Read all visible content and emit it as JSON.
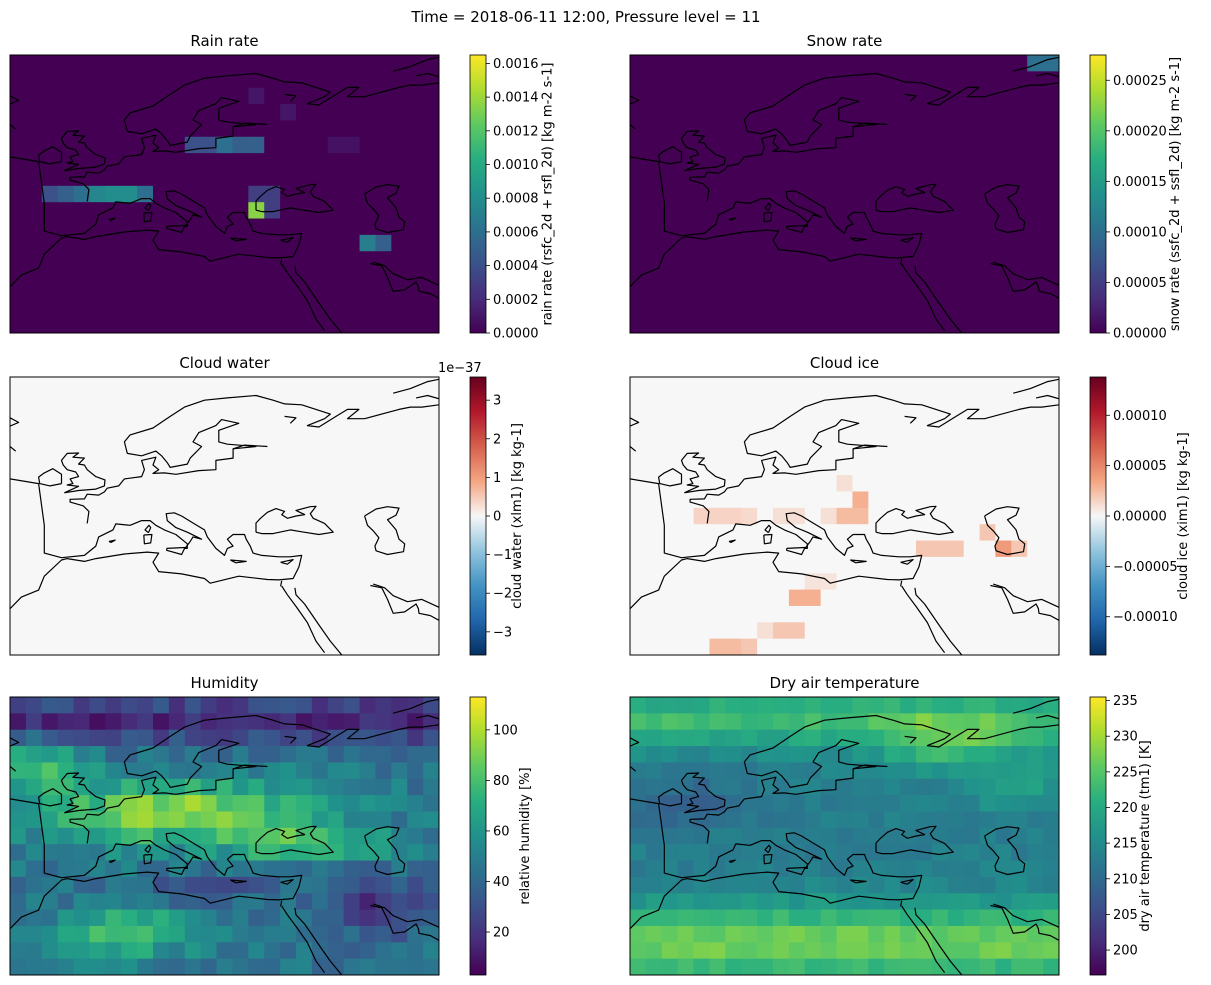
{
  "figure": {
    "suptitle": "Time = 2018-06-11 12:00, Pressure level = 11"
  },
  "panels": [
    {
      "id": "rain",
      "title": "Rain rate",
      "cmap": "viridis",
      "vmin": 0,
      "vmax": 0.00165,
      "ticks": [
        0,
        0.0002,
        0.0004,
        0.0006,
        0.0008,
        0.001,
        0.0012,
        0.0014,
        0.0016
      ],
      "tick_labels": [
        "0.0000",
        "0.0002",
        "0.0004",
        "0.0006",
        "0.0008",
        "0.0010",
        "0.0012",
        "0.0014",
        "0.0016"
      ],
      "colorbar_label": "rain rate (rsfc_2d + rsfl_2d) [kg m-2 s-1]",
      "offset_text": ""
    },
    {
      "id": "snow",
      "title": "Snow rate",
      "cmap": "viridis",
      "vmin": 0,
      "vmax": 0.000275,
      "ticks": [
        0,
        5e-05,
        0.0001,
        0.00015,
        0.0002,
        0.00025
      ],
      "tick_labels": [
        "0.00000",
        "0.00005",
        "0.00010",
        "0.00015",
        "0.00020",
        "0.00025"
      ],
      "colorbar_label": "snow rate (ssfc_2d + ssfl_2d) [kg m-2 s-1]",
      "offset_text": ""
    },
    {
      "id": "cloudwater",
      "title": "Cloud water",
      "cmap": "RdBu_r",
      "vmin": -3.6,
      "vmax": 3.6,
      "ticks": [
        -3,
        -2,
        -1,
        0,
        1,
        2,
        3
      ],
      "tick_labels": [
        "−3",
        "−2",
        "−1",
        "0",
        "1",
        "2",
        "3"
      ],
      "colorbar_label": "cloud water (xlm1) [kg kg-1]",
      "offset_text": "1e−37"
    },
    {
      "id": "cloudice",
      "title": "Cloud ice",
      "cmap": "RdBu_r",
      "vmin": -0.000138,
      "vmax": 0.000138,
      "ticks": [
        -0.0001,
        -5e-05,
        0,
        5e-05,
        0.0001
      ],
      "tick_labels": [
        "−0.00010",
        "−0.00005",
        "0.00000",
        "0.00005",
        "0.00010"
      ],
      "colorbar_label": "cloud ice (xim1) [kg kg-1]",
      "offset_text": ""
    },
    {
      "id": "humidity",
      "title": "Humidity",
      "cmap": "viridis",
      "vmin": 3,
      "vmax": 113,
      "ticks": [
        20,
        40,
        60,
        80,
        100
      ],
      "tick_labels": [
        "20",
        "40",
        "60",
        "80",
        "100"
      ],
      "colorbar_label": "relative humidity [%]",
      "offset_text": ""
    },
    {
      "id": "temperature",
      "title": "Dry air temperature",
      "cmap": "viridis",
      "vmin": 196.5,
      "vmax": 235.5,
      "ticks": [
        200,
        205,
        210,
        215,
        220,
        225,
        230,
        235
      ],
      "tick_labels": [
        "200",
        "205",
        "210",
        "215",
        "220",
        "225",
        "230",
        "235"
      ],
      "colorbar_label": "dry air temperature (tm1) [K]",
      "offset_text": ""
    }
  ],
  "chart_data": {
    "type": "heatmap",
    "grid": {
      "lon_range": [
        -15,
        60
      ],
      "lat_range": [
        15,
        75
      ],
      "shape": "approx. 27 columns x 17 rows per panel"
    },
    "rain_rate_cells": [
      {
        "lon": 28,
        "lat": 41,
        "value": 0.00135
      },
      {
        "lon": 1,
        "lat": 44,
        "value": 0.0009
      },
      {
        "lon": 3,
        "lat": 44,
        "value": 0.0008
      },
      {
        "lon": -5,
        "lat": 46,
        "value": 0.0006
      },
      {
        "lon": 50,
        "lat": 35,
        "value": 0.0007
      },
      {
        "lon": 22,
        "lat": 55,
        "value": 0.0007
      }
    ],
    "snow_rate_cells": [
      {
        "lon": 57,
        "lat": 74,
        "value": 0.0001
      }
    ],
    "cloud_water": "uniformly ~0 (scale 1e-37)",
    "cloud_ice_cells": [
      {
        "lon": 25,
        "lat": 48,
        "value": 3e-05
      },
      {
        "lon": 40,
        "lat": 37,
        "value": 3e-05
      },
      {
        "lon": 17,
        "lat": 25,
        "value": 3e-05
      }
    ]
  }
}
